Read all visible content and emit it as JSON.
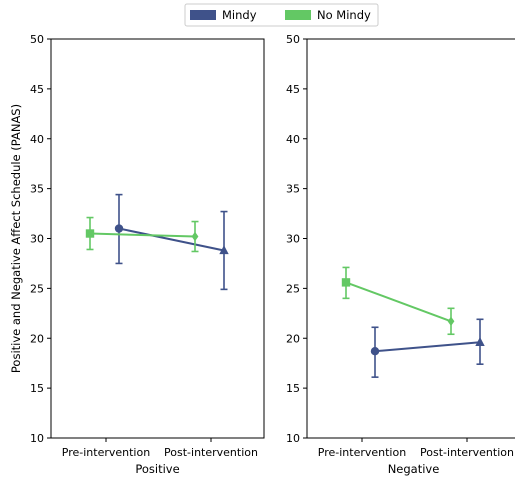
{
  "chart_data": {
    "type": "line",
    "ylabel": "Positive and Negative Affect Schedule (PANAS)",
    "ylim": [
      10,
      50
    ],
    "yticks": [
      10,
      15,
      20,
      25,
      30,
      35,
      40,
      45,
      50
    ],
    "categories": [
      "Pre-intervention",
      "Post-intervention"
    ],
    "legend": {
      "placement": "top-center",
      "entries": [
        {
          "name": "Mindy",
          "color": "#3f528a"
        },
        {
          "name": "No Mindy",
          "color": "#63c864"
        }
      ]
    },
    "panels": [
      {
        "xlabel": "Positive",
        "series": [
          {
            "name": "Mindy",
            "color": "#3f528a",
            "markers": [
              "circle",
              "triangle"
            ],
            "values": [
              31.0,
              28.8
            ],
            "err_low": [
              27.5,
              24.9
            ],
            "err_high": [
              34.4,
              32.7
            ]
          },
          {
            "name": "No Mindy",
            "color": "#63c864",
            "markers": [
              "square",
              "diamond"
            ],
            "values": [
              30.5,
              30.2
            ],
            "err_low": [
              28.9,
              28.7
            ],
            "err_high": [
              32.1,
              31.7
            ]
          }
        ]
      },
      {
        "xlabel": "Negative",
        "series": [
          {
            "name": "Mindy",
            "color": "#3f528a",
            "markers": [
              "circle",
              "triangle"
            ],
            "values": [
              18.7,
              19.6
            ],
            "err_low": [
              16.1,
              17.4
            ],
            "err_high": [
              21.1,
              21.9
            ]
          },
          {
            "name": "No Mindy",
            "color": "#63c864",
            "markers": [
              "square",
              "diamond"
            ],
            "values": [
              25.6,
              21.7
            ],
            "err_low": [
              24.0,
              20.4
            ],
            "err_high": [
              27.1,
              23.0
            ]
          }
        ]
      }
    ]
  }
}
